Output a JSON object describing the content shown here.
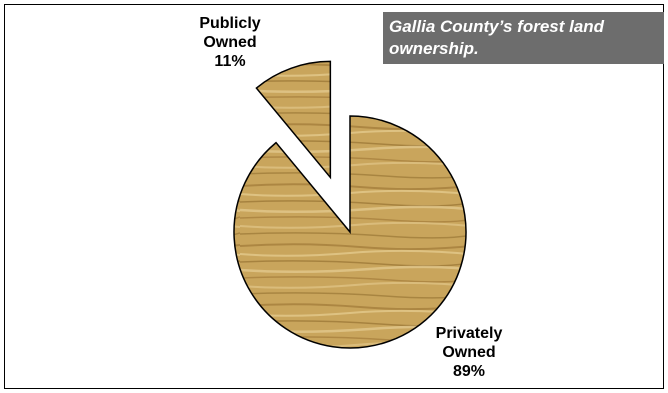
{
  "chart_data": {
    "type": "pie",
    "title": "Gallia County’s forest land ownership.",
    "slices": [
      {
        "label_line1": "Publicly",
        "label_line2": "Owned",
        "value_label": "11%",
        "value": 11,
        "exploded": true
      },
      {
        "label_line1": "Privately",
        "label_line2": "Owned",
        "value_label": "89%",
        "value": 89,
        "exploded": false
      }
    ],
    "colors": {
      "fill": "#c9a55c",
      "grain_dark": "#9a7634",
      "grain_light": "#e2c888",
      "outline": "#000000",
      "title_bg": "#6d6d6d",
      "title_text": "#ffffff"
    },
    "legend": "none"
  }
}
